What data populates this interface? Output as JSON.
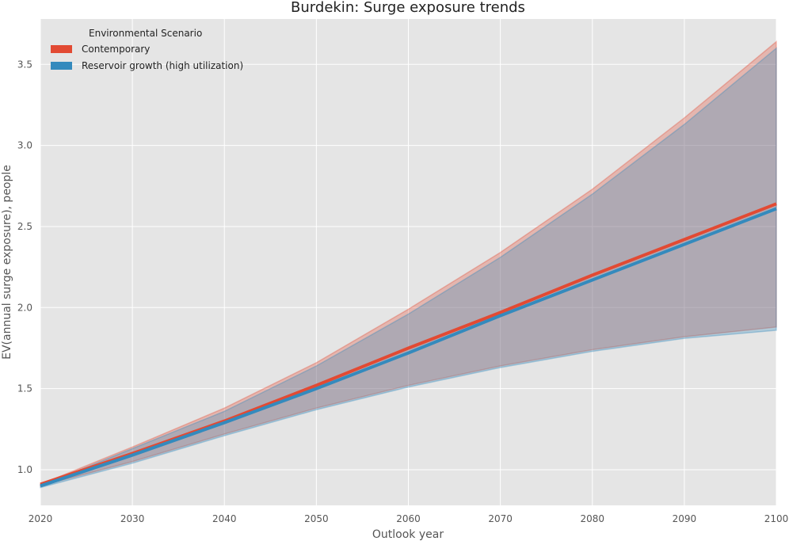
{
  "chart_data": {
    "type": "area",
    "title": "Burdekin: Surge exposure trends",
    "xlabel": "Outlook year",
    "ylabel": "EV(annual surge exposure), people",
    "xlim": [
      2020,
      2100
    ],
    "ylim": [
      0.78,
      3.78
    ],
    "xticks": [
      2020,
      2030,
      2040,
      2050,
      2060,
      2070,
      2080,
      2090,
      2100
    ],
    "yticks": [
      1.0,
      1.5,
      2.0,
      2.5,
      3.0,
      3.5
    ],
    "ytick_labels": [
      "1.0",
      "1.5",
      "2.0",
      "2.5",
      "3.0",
      "3.5"
    ],
    "grid": true,
    "legend": {
      "title": "Environmental Scenario",
      "placement": "top-left"
    },
    "x": [
      2020,
      2030,
      2040,
      2050,
      2060,
      2070,
      2080,
      2090,
      2100
    ],
    "series": [
      {
        "name": "Contemporary",
        "color": "#E24A33",
        "values": [
          0.91,
          1.1,
          1.3,
          1.52,
          1.75,
          1.97,
          2.2,
          2.42,
          2.64
        ],
        "lower": [
          0.9,
          1.05,
          1.22,
          1.38,
          1.52,
          1.64,
          1.74,
          1.82,
          1.88
        ],
        "upper": [
          0.91,
          1.14,
          1.38,
          1.66,
          1.99,
          2.34,
          2.73,
          3.17,
          3.64
        ]
      },
      {
        "name": "Reservoir growth (high utilization)",
        "color": "#348ABD",
        "values": [
          0.9,
          1.09,
          1.29,
          1.5,
          1.72,
          1.95,
          2.17,
          2.39,
          2.61
        ],
        "lower": [
          0.89,
          1.04,
          1.21,
          1.37,
          1.51,
          1.63,
          1.73,
          1.81,
          1.86
        ],
        "upper": [
          0.9,
          1.13,
          1.36,
          1.64,
          1.96,
          2.31,
          2.7,
          3.13,
          3.6
        ]
      }
    ]
  }
}
